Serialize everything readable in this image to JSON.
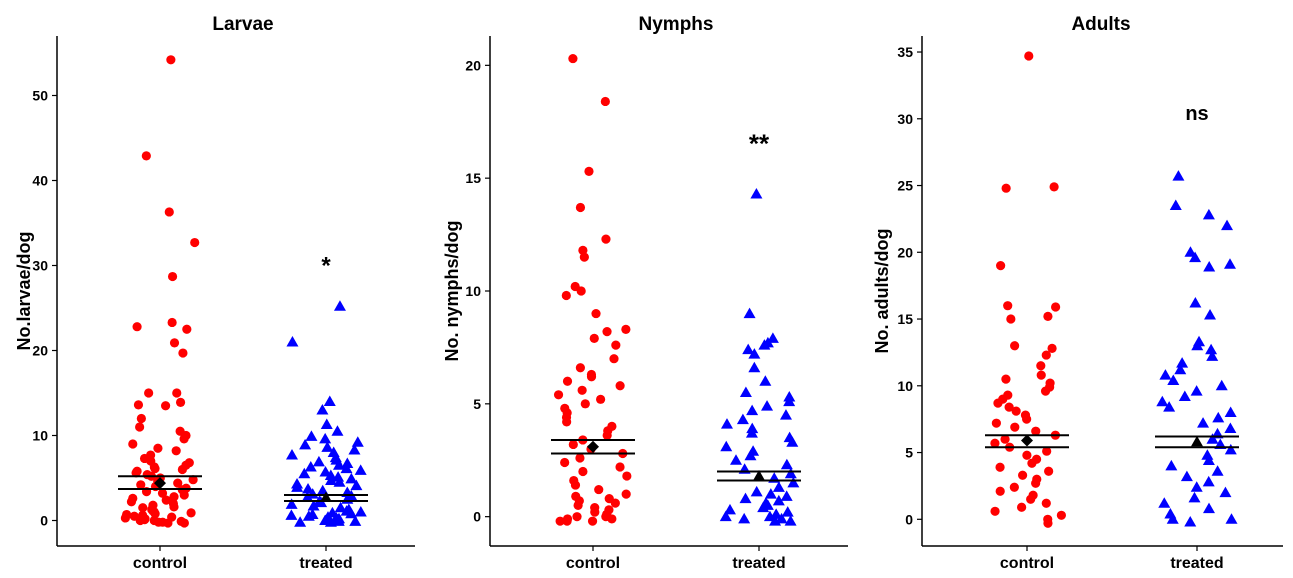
{
  "chart_data": [
    {
      "type": "scatter",
      "title": "Larvae",
      "ylabel": "No.larvae/dog",
      "xlabel": "",
      "categories": [
        "control",
        "treated"
      ],
      "ylim": [
        -3,
        57
      ],
      "yticks": [
        0,
        10,
        20,
        30,
        40,
        50
      ],
      "significance": "*",
      "series": [
        {
          "values": [
            54.2,
            42.9,
            36.3,
            32.7,
            28.7,
            23.3,
            22.8,
            22.5,
            20.9,
            19.7,
            15.0,
            15.0,
            13.9,
            13.6,
            13.5,
            12.0,
            11.0,
            10.5,
            10.0,
            9.6,
            9.0,
            8.5,
            8.2,
            7.7,
            7.3,
            7.0,
            6.8,
            6.5,
            6.3,
            6.1,
            6.0,
            5.8,
            5.6,
            5.4,
            5.2,
            5.0,
            4.8,
            4.6,
            4.4,
            4.2,
            4.0,
            3.8,
            3.6,
            3.4,
            3.2,
            3.0,
            2.8,
            2.6,
            2.4,
            2.2,
            2.0,
            1.8,
            1.6,
            1.5,
            1.3,
            1.1,
            1.0,
            0.9,
            0.8,
            0.7,
            0.6,
            0.5,
            0.4,
            0.3,
            0.2,
            0.1,
            0.0,
            0.0,
            -0.1,
            -0.2,
            -0.2,
            -0.3,
            -0.3
          ],
          "mean": 4.4,
          "ci": [
            3.7,
            5.2
          ]
        },
        {
          "values": [
            25.2,
            21.0,
            14.0,
            13.0,
            11.3,
            10.5,
            9.9,
            9.6,
            9.2,
            8.9,
            8.6,
            8.3,
            8.0,
            7.7,
            7.4,
            7.1,
            6.9,
            6.7,
            6.5,
            6.3,
            6.1,
            5.9,
            5.7,
            5.5,
            5.3,
            5.1,
            4.9,
            4.7,
            4.5,
            4.3,
            4.1,
            3.9,
            3.7,
            3.5,
            3.3,
            3.1,
            2.9,
            2.7,
            2.5,
            2.3,
            2.1,
            1.9,
            1.7,
            1.5,
            1.3,
            1.1,
            1.0,
            0.9,
            0.8,
            0.7,
            0.6,
            0.5,
            0.4,
            0.3,
            0.2,
            0.1,
            0.0,
            0.0,
            -0.1,
            -0.1,
            -0.2,
            -0.2
          ],
          "mean": 2.7,
          "ci": [
            2.3,
            3.0
          ]
        }
      ]
    },
    {
      "type": "scatter",
      "title": "Nymphs",
      "ylabel": "No. nymphs/dog",
      "xlabel": "",
      "categories": [
        "control",
        "treated"
      ],
      "ylim": [
        -1.3,
        21.3
      ],
      "yticks": [
        0,
        5,
        10,
        15,
        20
      ],
      "significance": "**",
      "series": [
        {
          "values": [
            20.3,
            18.4,
            15.3,
            13.7,
            12.3,
            11.8,
            11.5,
            10.2,
            10.0,
            9.8,
            9.0,
            8.3,
            8.2,
            7.9,
            7.6,
            7.0,
            6.6,
            6.3,
            6.2,
            6.0,
            5.8,
            5.6,
            5.4,
            5.2,
            5.0,
            4.8,
            4.6,
            4.4,
            4.2,
            4.0,
            3.8,
            3.6,
            3.4,
            3.2,
            3.0,
            2.8,
            2.6,
            2.4,
            2.2,
            2.0,
            1.8,
            1.6,
            1.4,
            1.2,
            1.0,
            0.9,
            0.8,
            0.7,
            0.6,
            0.5,
            0.4,
            0.3,
            0.2,
            0.1,
            0.0,
            0.0,
            -0.1,
            -0.1,
            -0.2,
            -0.2,
            -0.2
          ],
          "mean": 3.1,
          "ci": [
            2.8,
            3.4
          ]
        },
        {
          "values": [
            14.3,
            9.0,
            7.9,
            7.7,
            7.6,
            7.4,
            7.2,
            6.6,
            6.0,
            5.5,
            5.3,
            5.1,
            4.9,
            4.7,
            4.5,
            4.3,
            4.1,
            3.9,
            3.7,
            3.5,
            3.3,
            3.1,
            2.9,
            2.7,
            2.5,
            2.3,
            2.1,
            1.9,
            1.7,
            1.5,
            1.3,
            1.1,
            1.0,
            0.9,
            0.8,
            0.7,
            0.6,
            0.5,
            0.4,
            0.3,
            0.2,
            0.1,
            0.0,
            0.0,
            -0.1,
            -0.1,
            -0.2,
            -0.2
          ],
          "mean": 1.8,
          "ci": [
            1.6,
            2.0
          ]
        }
      ]
    },
    {
      "type": "scatter",
      "title": "Adults",
      "ylabel": "No. adults/dog",
      "xlabel": "",
      "categories": [
        "control",
        "treated"
      ],
      "ylim": [
        -2,
        36.2
      ],
      "yticks": [
        0,
        5,
        10,
        15,
        20,
        25,
        30,
        35
      ],
      "significance": "ns",
      "series": [
        {
          "values": [
            34.7,
            24.9,
            24.8,
            19.0,
            16.0,
            15.9,
            15.2,
            15.0,
            13.0,
            12.8,
            12.3,
            11.5,
            10.8,
            10.5,
            10.2,
            9.9,
            9.6,
            9.3,
            9.0,
            8.7,
            8.4,
            8.1,
            7.8,
            7.5,
            7.2,
            6.9,
            6.6,
            6.3,
            6.0,
            5.7,
            5.4,
            5.1,
            4.8,
            4.5,
            4.2,
            3.9,
            3.6,
            3.3,
            3.0,
            2.7,
            2.4,
            2.1,
            1.8,
            1.5,
            1.2,
            0.9,
            0.6,
            0.3,
            0.0,
            -0.3
          ],
          "mean": 5.9,
          "ci": [
            5.4,
            6.3
          ]
        },
        {
          "values": [
            25.7,
            23.5,
            22.8,
            22.0,
            20.0,
            19.6,
            19.1,
            18.9,
            16.2,
            15.3,
            13.3,
            13.0,
            12.7,
            12.2,
            11.7,
            11.2,
            10.8,
            10.4,
            10.0,
            9.6,
            9.2,
            8.8,
            8.4,
            8.0,
            7.6,
            7.2,
            6.8,
            6.4,
            6.0,
            5.6,
            5.2,
            4.8,
            4.4,
            4.0,
            3.6,
            3.2,
            2.8,
            2.4,
            2.0,
            1.6,
            1.2,
            0.8,
            0.4,
            0.0,
            0.0,
            -0.2
          ],
          "mean": 5.8,
          "ci": [
            5.4,
            6.2
          ]
        }
      ]
    }
  ],
  "colors": {
    "control": "#ff0000",
    "treated": "#0000ff",
    "mean_marker": "#000000",
    "ci_lines": "#000000",
    "axis": "#000000"
  }
}
